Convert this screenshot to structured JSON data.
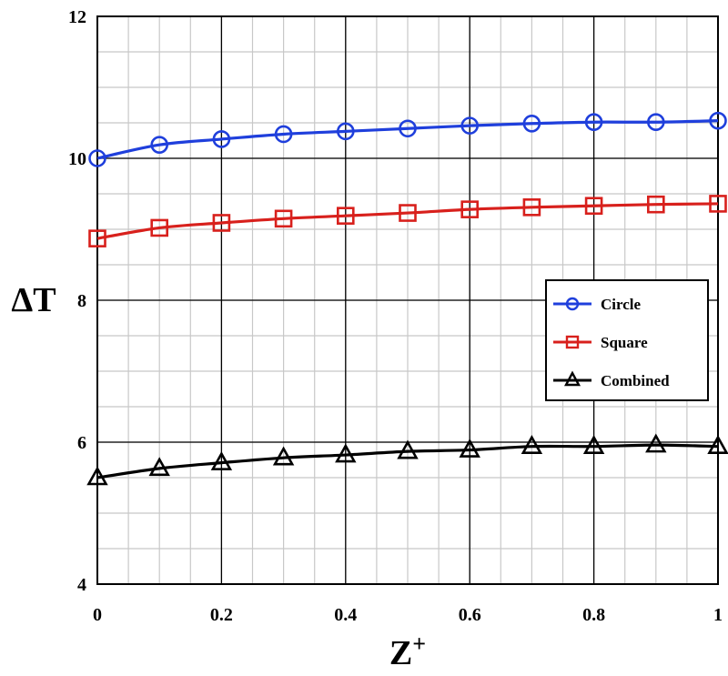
{
  "chart_data": {
    "type": "line",
    "x": [
      0,
      0.1,
      0.2,
      0.3,
      0.4,
      0.5,
      0.6,
      0.7,
      0.8,
      0.9,
      1
    ],
    "series": [
      {
        "name": "Circle",
        "color": "#1f3fdc",
        "marker": "circle",
        "values": [
          10.0,
          10.19,
          10.27,
          10.34,
          10.38,
          10.42,
          10.46,
          10.49,
          10.51,
          10.51,
          10.53
        ]
      },
      {
        "name": "Square",
        "color": "#d8201c",
        "marker": "square",
        "values": [
          8.87,
          9.02,
          9.09,
          9.15,
          9.19,
          9.23,
          9.28,
          9.31,
          9.33,
          9.35,
          9.36
        ]
      },
      {
        "name": "Combined",
        "color": "#000000",
        "marker": "triangle",
        "values": [
          5.5,
          5.63,
          5.71,
          5.78,
          5.82,
          5.87,
          5.89,
          5.94,
          5.94,
          5.96,
          5.94
        ]
      }
    ],
    "xlabel": "Z",
    "xlabel_sup": "+",
    "ylabel": "ΔT",
    "xlim": [
      0,
      1
    ],
    "ylim": [
      4,
      12
    ],
    "x_ticks": [
      "0",
      "0.2",
      "0.4",
      "0.6",
      "0.8",
      "1"
    ],
    "y_ticks": [
      "4",
      "6",
      "8",
      "10",
      "12"
    ],
    "grid": true,
    "legend_position": "right"
  }
}
